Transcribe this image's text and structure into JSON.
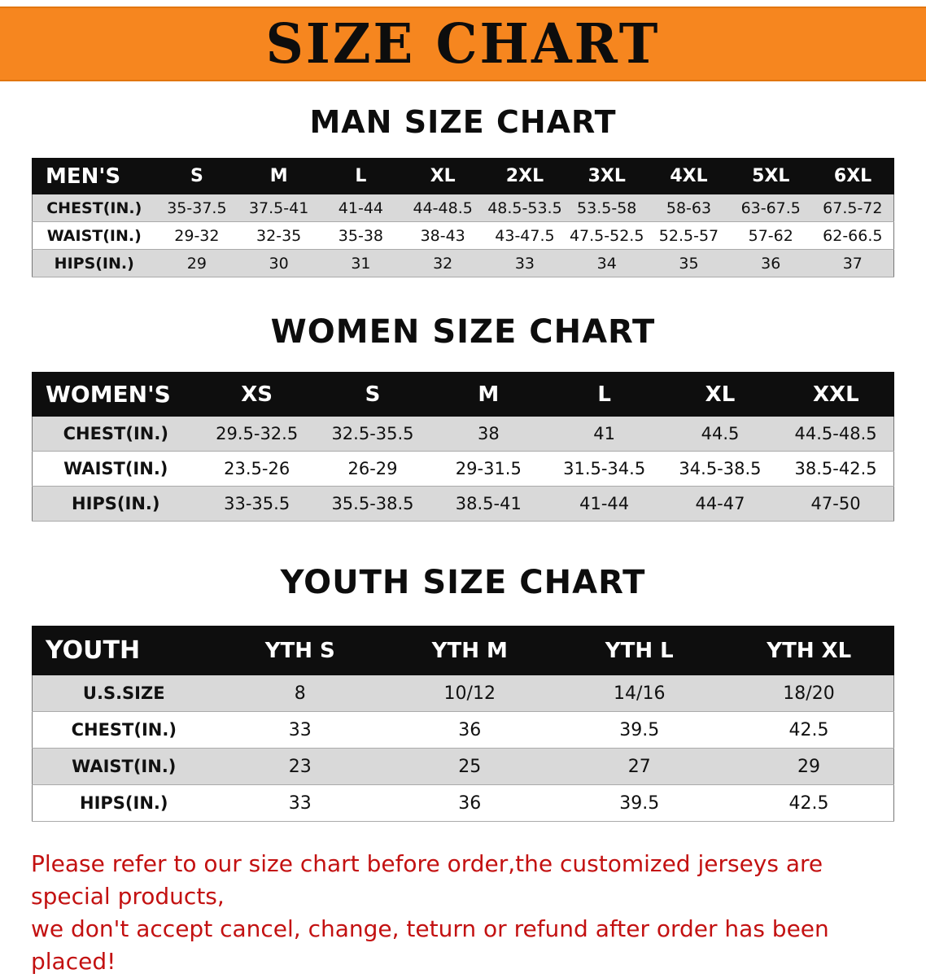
{
  "banner": {
    "title": "SIZE CHART"
  },
  "chart_data": [
    {
      "type": "table",
      "title": "MAN SIZE CHART",
      "header": [
        "MEN'S",
        "S",
        "M",
        "L",
        "XL",
        "2XL",
        "3XL",
        "4XL",
        "5XL",
        "6XL"
      ],
      "rows": [
        [
          "CHEST(IN.)",
          "35-37.5",
          "37.5-41",
          "41-44",
          "44-48.5",
          "48.5-53.5",
          "53.5-58",
          "58-63",
          "63-67.5",
          "67.5-72"
        ],
        [
          "WAIST(IN.)",
          "29-32",
          "32-35",
          "35-38",
          "38-43",
          "43-47.5",
          "47.5-52.5",
          "52.5-57",
          "57-62",
          "62-66.5"
        ],
        [
          "HIPS(IN.)",
          "29",
          "30",
          "31",
          "32",
          "33",
          "34",
          "35",
          "36",
          "37"
        ]
      ]
    },
    {
      "type": "table",
      "title": "WOMEN SIZE CHART",
      "header": [
        "WOMEN'S",
        "XS",
        "S",
        "M",
        "L",
        "XL",
        "XXL"
      ],
      "rows": [
        [
          "CHEST(IN.)",
          "29.5-32.5",
          "32.5-35.5",
          "38",
          "41",
          "44.5",
          "44.5-48.5"
        ],
        [
          "WAIST(IN.)",
          "23.5-26",
          "26-29",
          "29-31.5",
          "31.5-34.5",
          "34.5-38.5",
          "38.5-42.5"
        ],
        [
          "HIPS(IN.)",
          "33-35.5",
          "35.5-38.5",
          "38.5-41",
          "41-44",
          "44-47",
          "47-50"
        ]
      ]
    },
    {
      "type": "table",
      "title": "YOUTH SIZE CHART",
      "header": [
        "YOUTH",
        "YTH S",
        "YTH M",
        "YTH L",
        "YTH XL"
      ],
      "rows": [
        [
          "U.S.SIZE",
          "8",
          "10/12",
          "14/16",
          "18/20"
        ],
        [
          "CHEST(IN.)",
          "33",
          "36",
          "39.5",
          "42.5"
        ],
        [
          "WAIST(IN.)",
          "23",
          "25",
          "27",
          "29"
        ],
        [
          "HIPS(IN.)",
          "33",
          "36",
          "39.5",
          "42.5"
        ]
      ]
    }
  ],
  "disclaimer": {
    "line1": "Please refer to our size chart before order,the customized jerseys are special products,",
    "line2": "we don't accept cancel, change, teturn or refund after order has been placed!"
  },
  "colors": {
    "banner_bg": "#f6861f",
    "table_header_bg": "#0e0e0e",
    "row_shade_bg": "#d9d9d9",
    "disclaimer_text": "#c31111"
  }
}
